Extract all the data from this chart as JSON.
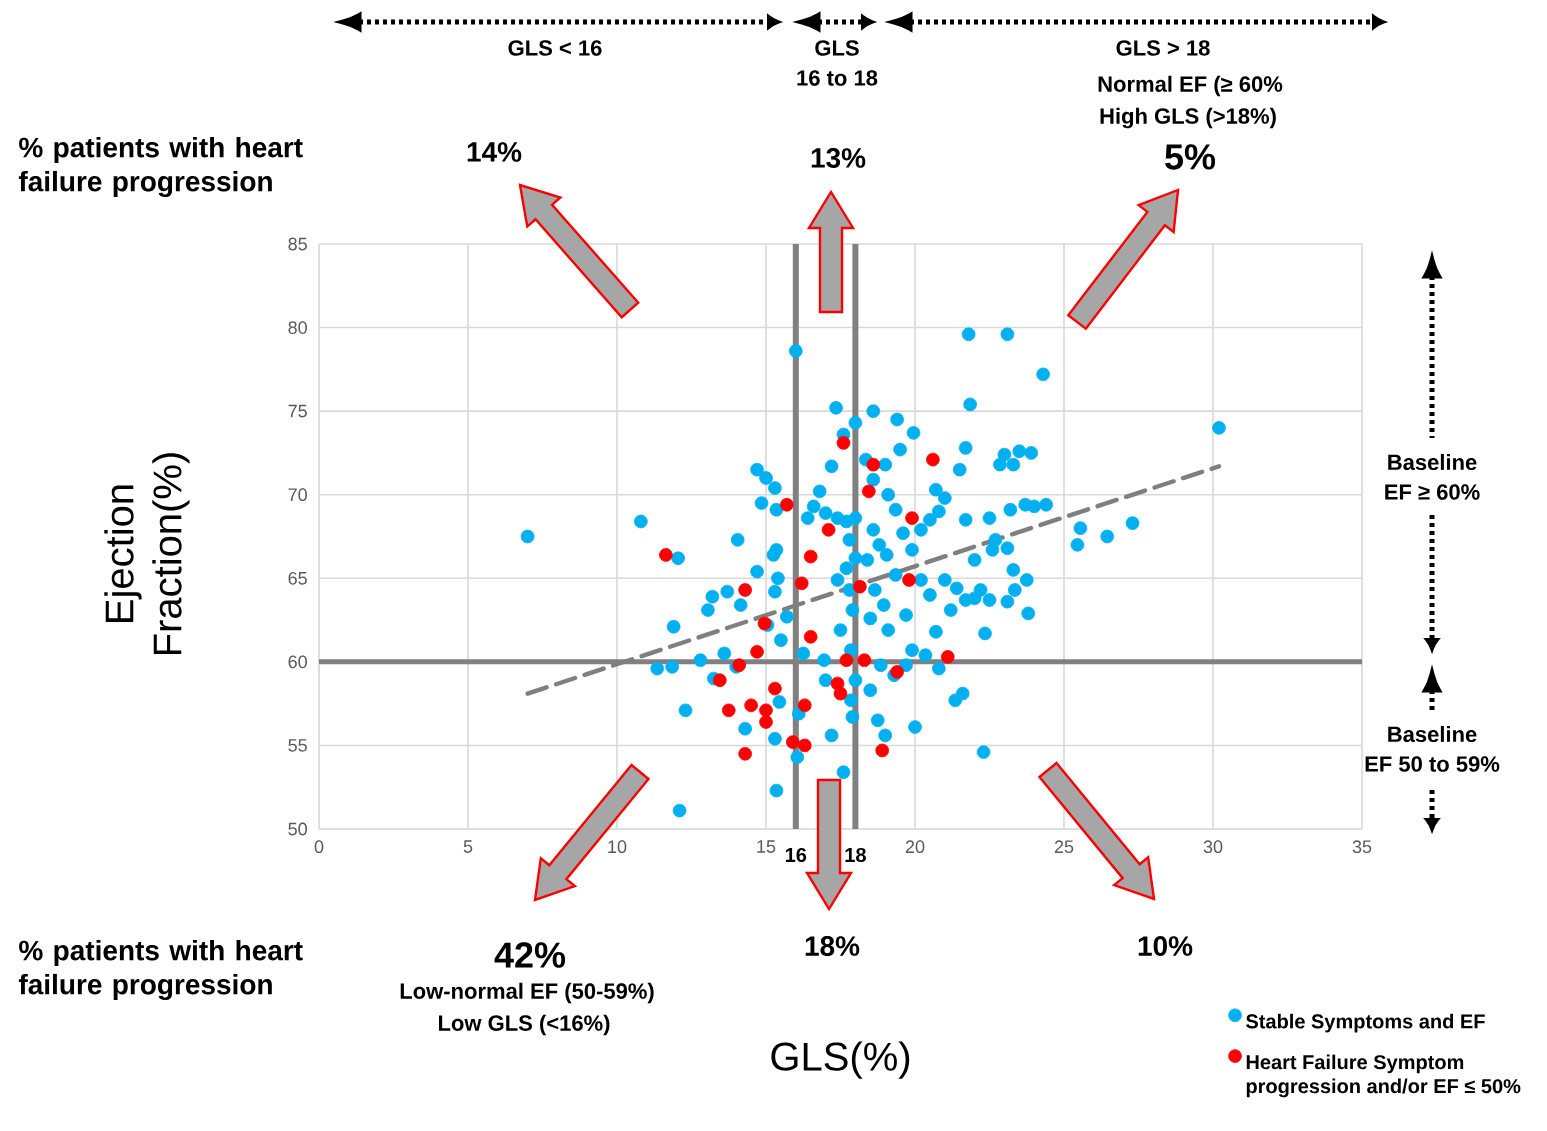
{
  "chart_data": {
    "type": "scatter",
    "xlabel": "GLS(%)",
    "ylabel": "Ejection Fraction(%)",
    "xlim": [
      0,
      35
    ],
    "ylim": [
      50,
      85
    ],
    "xticks": [
      0,
      5,
      10,
      15,
      20,
      25,
      30,
      35
    ],
    "yticks": [
      50,
      55,
      60,
      65,
      70,
      75,
      80,
      85
    ],
    "grid": true,
    "legend": "bottom right",
    "marker": "circle",
    "ref_lines": [
      {
        "axis": "x",
        "value": 16,
        "label": "16",
        "color": "#808080"
      },
      {
        "axis": "x",
        "value": 18,
        "label": "18",
        "color": "#808080"
      },
      {
        "axis": "y",
        "value": 60,
        "color": "#808080"
      }
    ],
    "annotations": [
      "GLS < 16",
      "GLS",
      "16 to 18",
      "GLS > 18",
      "Normal EF (≥ 60%",
      "High GLS (>18%)",
      "% patients with heart failure progression",
      "14%",
      "13%",
      "5%",
      "Baseline",
      "EF ≥ 60%",
      "Baseline",
      "EF  50 to 59%",
      "42%",
      "18%",
      "10%",
      "% patients with heart failure progression",
      "Low-normal EF (50-59%)",
      "Low GLS (<16%)"
    ],
    "series": [
      {
        "name": "Stable Symptoms and EF",
        "color": "#00b0f0",
        "x": [
          7.0,
          10.8,
          12.05,
          11.9,
          12.3,
          12.1,
          11.35,
          11.85,
          12.8,
          13.2,
          13.05,
          13.7,
          13.6,
          14.0,
          13.25,
          14.15,
          14.05,
          14.7,
          15.0,
          14.85,
          15.3,
          15.35,
          15.25,
          15.35,
          15.3,
          15.4,
          14.7,
          15.7,
          15.5,
          15.05,
          15.45,
          15.3,
          15.35,
          14.3,
          16.25,
          16.1,
          16.05,
          16.0,
          16.6,
          16.4,
          16.8,
          17.0,
          17.2,
          17.6,
          17.35,
          17.6,
          18.0,
          17.2,
          17.0,
          17.4,
          17.7,
          18.0,
          17.8,
          18.0,
          17.7,
          17.4,
          17.8,
          17.9,
          17.5,
          16.95,
          17.85,
          17.85,
          17.9,
          18.0,
          18.6,
          18.35,
          18.6,
          19.0,
          19.4,
          19.95,
          19.5,
          19.1,
          19.35,
          19.6,
          19.9,
          20.2,
          20.5,
          20.8,
          21.0,
          20.7,
          18.6,
          18.8,
          18.4,
          19.05,
          19.35,
          18.65,
          18.95,
          18.5,
          19.1,
          19.7,
          20.2,
          20.5,
          21.0,
          21.4,
          21.2,
          20.7,
          20.35,
          19.9,
          19.7,
          18.85,
          19.3,
          18.5,
          18.75,
          19.0,
          20.0,
          20.8,
          21.35,
          21.6,
          21.7,
          21.7,
          21.8,
          21.85,
          23.1,
          24.3,
          21.5,
          22.0,
          22.2,
          22.5,
          22.35,
          22.0,
          21.7,
          22.85,
          23.0,
          23.3,
          23.5,
          23.9,
          23.2,
          23.7,
          24.0,
          24.4,
          22.7,
          22.6,
          23.1,
          23.75,
          23.35,
          23.1,
          23.8,
          22.5,
          25.45,
          25.55,
          26.45,
          27.3,
          30.2,
          22.3,
          23.3
        ],
        "values": [
          67.5,
          68.4,
          66.2,
          62.1,
          57.1,
          51.1,
          59.6,
          59.7,
          60.1,
          63.9,
          63.1,
          64.2,
          60.5,
          59.7,
          59.0,
          63.4,
          67.3,
          71.5,
          71.0,
          69.5,
          70.4,
          69.1,
          66.4,
          66.7,
          64.2,
          65.0,
          65.4,
          62.7,
          61.3,
          62.2,
          57.6,
          55.4,
          52.3,
          56.0,
          60.5,
          56.9,
          54.3,
          78.6,
          69.3,
          68.6,
          70.2,
          58.9,
          55.6,
          53.4,
          75.2,
          73.6,
          74.3,
          71.7,
          68.9,
          68.6,
          68.4,
          68.6,
          67.3,
          66.2,
          65.6,
          64.9,
          64.3,
          63.1,
          61.9,
          60.1,
          60.7,
          57.7,
          56.7,
          58.9,
          75.0,
          72.1,
          70.9,
          71.8,
          74.5,
          73.7,
          72.7,
          70.0,
          69.1,
          67.7,
          66.7,
          67.9,
          68.5,
          69.0,
          69.8,
          70.3,
          67.9,
          67.0,
          66.1,
          66.4,
          65.2,
          64.3,
          63.4,
          62.6,
          61.9,
          62.8,
          64.9,
          64.0,
          64.9,
          64.4,
          63.1,
          61.8,
          60.4,
          60.7,
          59.8,
          59.8,
          59.2,
          58.3,
          56.5,
          55.6,
          56.1,
          59.6,
          57.7,
          58.1,
          68.5,
          72.8,
          79.6,
          75.4,
          79.6,
          77.2,
          71.5,
          66.1,
          64.3,
          63.7,
          61.7,
          63.8,
          63.7,
          71.8,
          72.4,
          71.8,
          72.6,
          72.5,
          69.1,
          69.4,
          69.3,
          69.4,
          67.3,
          66.7,
          66.8,
          64.9,
          64.3,
          63.6,
          62.9,
          68.6,
          67.0,
          68.0,
          67.5,
          68.3,
          74.0,
          54.6,
          65.5
        ]
      },
      {
        "name": "Heart Failure Symptom progression and/or EF ≤ 50%",
        "color": "#ff0000",
        "x": [
          11.64,
          14.3,
          14.95,
          15.7,
          16.2,
          16.5,
          17.1,
          16.5,
          14.1,
          14.7,
          13.45,
          13.75,
          14.5,
          15.0,
          15.3,
          15.0,
          16.3,
          15.9,
          16.3,
          14.3,
          17.6,
          18.6,
          18.45,
          19.9,
          20.6,
          19.8,
          18.15,
          17.7,
          18.3,
          17.4,
          17.5,
          19.4,
          21.1,
          18.9
        ],
        "values": [
          66.4,
          64.3,
          62.3,
          69.4,
          64.7,
          66.3,
          67.9,
          61.5,
          59.8,
          60.6,
          58.9,
          57.1,
          57.4,
          57.1,
          58.4,
          56.4,
          57.4,
          55.2,
          55.0,
          54.5,
          73.1,
          71.8,
          70.2,
          68.6,
          72.1,
          64.9,
          64.5,
          60.1,
          60.1,
          58.7,
          58.1,
          59.4,
          60.3,
          54.7
        ]
      },
      {
        "type": "line",
        "color": "#7f7f7f",
        "marker": "none",
        "line_style": "dashed",
        "x": [
          7.0,
          30.2
        ],
        "values": [
          58.1,
          71.7
        ]
      }
    ]
  }
}
